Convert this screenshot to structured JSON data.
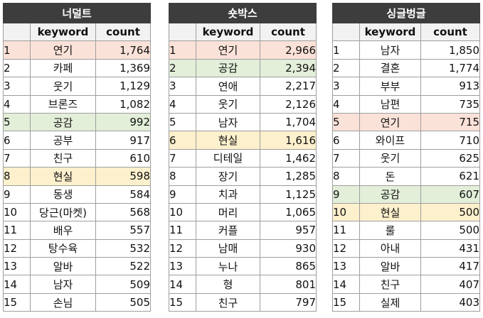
{
  "column_headers": {
    "keyword": "keyword",
    "count": "count"
  },
  "tables": [
    {
      "title": "너덜트",
      "rows": [
        {
          "rank": "1",
          "keyword": "연기",
          "count": "1,764",
          "highlight": "red"
        },
        {
          "rank": "2",
          "keyword": "카페",
          "count": "1,369",
          "highlight": ""
        },
        {
          "rank": "3",
          "keyword": "웃기",
          "count": "1,129",
          "highlight": ""
        },
        {
          "rank": "4",
          "keyword": "브론즈",
          "count": "1,082",
          "highlight": ""
        },
        {
          "rank": "5",
          "keyword": "공감",
          "count": "992",
          "highlight": "green"
        },
        {
          "rank": "6",
          "keyword": "공부",
          "count": "917",
          "highlight": ""
        },
        {
          "rank": "7",
          "keyword": "친구",
          "count": "610",
          "highlight": ""
        },
        {
          "rank": "8",
          "keyword": "현실",
          "count": "598",
          "highlight": "yellow"
        },
        {
          "rank": "9",
          "keyword": "동생",
          "count": "584",
          "highlight": ""
        },
        {
          "rank": "10",
          "keyword": "당근(마켓)",
          "count": "568",
          "highlight": ""
        },
        {
          "rank": "11",
          "keyword": "배우",
          "count": "557",
          "highlight": ""
        },
        {
          "rank": "12",
          "keyword": "탕수육",
          "count": "532",
          "highlight": ""
        },
        {
          "rank": "13",
          "keyword": "알바",
          "count": "522",
          "highlight": ""
        },
        {
          "rank": "14",
          "keyword": "남자",
          "count": "509",
          "highlight": ""
        },
        {
          "rank": "15",
          "keyword": "손님",
          "count": "505",
          "highlight": ""
        }
      ]
    },
    {
      "title": "숏박스",
      "rows": [
        {
          "rank": "1",
          "keyword": "연기",
          "count": "2,966",
          "highlight": "red"
        },
        {
          "rank": "2",
          "keyword": "공감",
          "count": "2,394",
          "highlight": "green"
        },
        {
          "rank": "3",
          "keyword": "연애",
          "count": "2,217",
          "highlight": ""
        },
        {
          "rank": "4",
          "keyword": "웃기",
          "count": "2,126",
          "highlight": ""
        },
        {
          "rank": "5",
          "keyword": "남자",
          "count": "1,704",
          "highlight": ""
        },
        {
          "rank": "6",
          "keyword": "현실",
          "count": "1,616",
          "highlight": "yellow"
        },
        {
          "rank": "7",
          "keyword": "디테일",
          "count": "1,462",
          "highlight": ""
        },
        {
          "rank": "8",
          "keyword": "장기",
          "count": "1,285",
          "highlight": ""
        },
        {
          "rank": "9",
          "keyword": "치과",
          "count": "1,125",
          "highlight": ""
        },
        {
          "rank": "10",
          "keyword": "머리",
          "count": "1,065",
          "highlight": ""
        },
        {
          "rank": "11",
          "keyword": "커플",
          "count": "957",
          "highlight": ""
        },
        {
          "rank": "12",
          "keyword": "남매",
          "count": "930",
          "highlight": ""
        },
        {
          "rank": "13",
          "keyword": "누나",
          "count": "865",
          "highlight": ""
        },
        {
          "rank": "14",
          "keyword": "형",
          "count": "801",
          "highlight": ""
        },
        {
          "rank": "15",
          "keyword": "친구",
          "count": "797",
          "highlight": ""
        }
      ]
    },
    {
      "title": "싱글벙글",
      "rows": [
        {
          "rank": "1",
          "keyword": "남자",
          "count": "1,850",
          "highlight": ""
        },
        {
          "rank": "2",
          "keyword": "결혼",
          "count": "1,774",
          "highlight": ""
        },
        {
          "rank": "3",
          "keyword": "부부",
          "count": "913",
          "highlight": ""
        },
        {
          "rank": "4",
          "keyword": "남편",
          "count": "735",
          "highlight": ""
        },
        {
          "rank": "5",
          "keyword": "연기",
          "count": "715",
          "highlight": "red"
        },
        {
          "rank": "6",
          "keyword": "와이프",
          "count": "710",
          "highlight": ""
        },
        {
          "rank": "7",
          "keyword": "웃기",
          "count": "625",
          "highlight": ""
        },
        {
          "rank": "8",
          "keyword": "돈",
          "count": "621",
          "highlight": ""
        },
        {
          "rank": "9",
          "keyword": "공감",
          "count": "607",
          "highlight": "green"
        },
        {
          "rank": "10",
          "keyword": "현실",
          "count": "500",
          "highlight": "yellow"
        },
        {
          "rank": "11",
          "keyword": "룰",
          "count": "500",
          "highlight": ""
        },
        {
          "rank": "12",
          "keyword": "아내",
          "count": "431",
          "highlight": ""
        },
        {
          "rank": "13",
          "keyword": "알바",
          "count": "417",
          "highlight": ""
        },
        {
          "rank": "14",
          "keyword": "친구",
          "count": "407",
          "highlight": ""
        },
        {
          "rank": "15",
          "keyword": "실제",
          "count": "403",
          "highlight": ""
        }
      ]
    }
  ],
  "highlight_colors": {
    "red": "#fbe2d8",
    "green": "#e3efd9",
    "yellow": "#fdf0cc"
  }
}
